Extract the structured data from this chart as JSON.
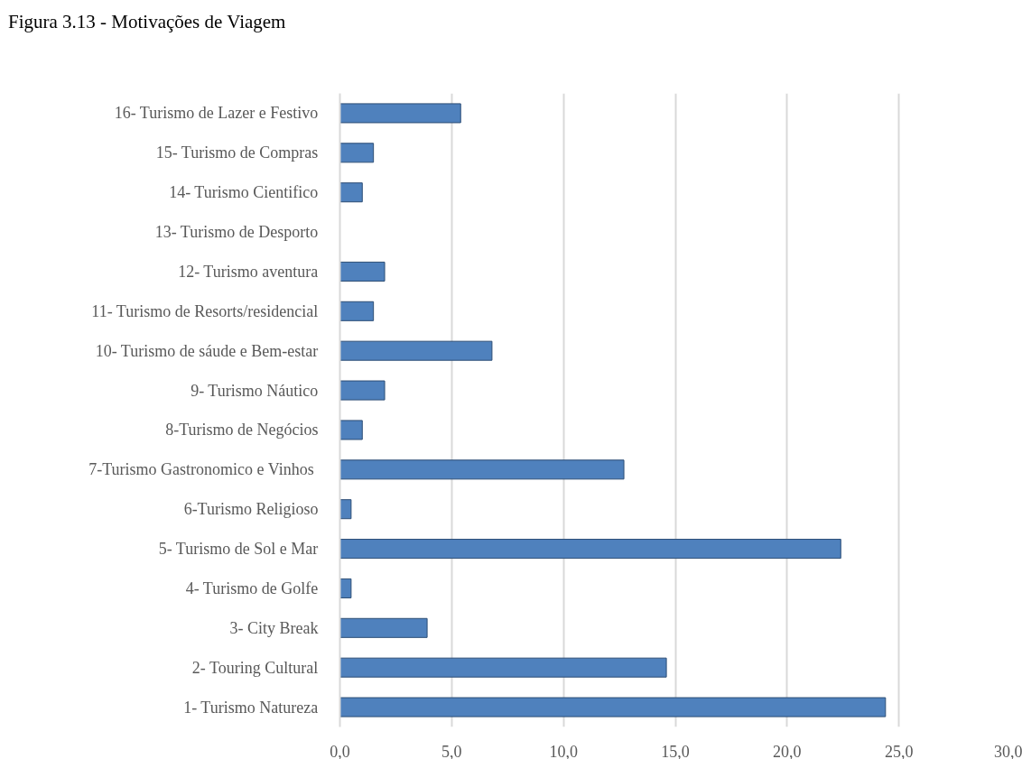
{
  "chart_data": {
    "type": "bar",
    "orientation": "horizontal",
    "title": "Figura 3.13 - Motivações de Viagem",
    "categories": [
      "16- Turismo de Lazer e Festivo",
      "15- Turismo de Compras",
      "14- Turismo Cientifico",
      "13- Turismo de Desporto",
      "12- Turismo aventura",
      "11- Turismo de Resorts/residencial",
      "10- Turismo de sáude e Bem-estar",
      "9- Turismo Náutico",
      "8-Turismo de Negócios",
      "7-Turismo Gastronomico e Vinhos ",
      "6-Turismo Religioso",
      "5- Turismo de Sol e Mar",
      "4- Turismo de Golfe",
      "3- City Break",
      "2- Touring Cultural",
      "1- Turismo Natureza"
    ],
    "values": [
      5.4,
      1.5,
      1.0,
      0,
      2.0,
      1.5,
      6.8,
      2.0,
      1.0,
      12.7,
      0.5,
      22.4,
      0.5,
      3.9,
      14.6,
      24.4
    ],
    "color": "#4f81bd",
    "xlim": [
      0,
      30
    ],
    "xticks": [
      {
        "value": 0,
        "label": "0,0"
      },
      {
        "value": 5,
        "label": "5,0"
      },
      {
        "value": 10,
        "label": "10,0"
      },
      {
        "value": 15,
        "label": "15,0"
      },
      {
        "value": 20,
        "label": "20,0"
      },
      {
        "value": 25,
        "label": "25,0"
      },
      {
        "value": 30,
        "label": "30,0"
      }
    ],
    "grid": "x"
  }
}
